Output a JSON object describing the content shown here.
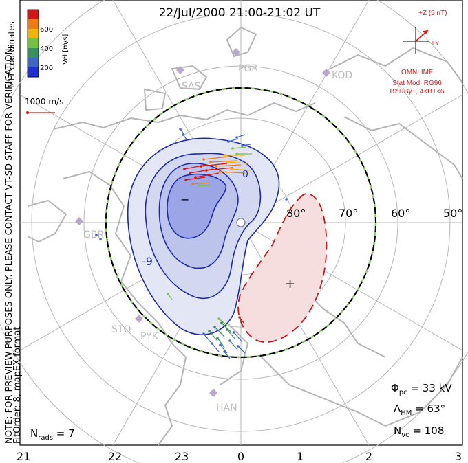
{
  "title": "22/Jul/2000 21:00-21:02 UT",
  "velocity_scale": {
    "label": "Vel [m/s]",
    "ticks": [
      "600",
      "400",
      "200"
    ],
    "colors": [
      "#d31515",
      "#f07a14",
      "#f2b40a",
      "#76c043",
      "#3a8f5f",
      "#3e67c9",
      "#1f2fd0"
    ]
  },
  "vector_scale_label": "1000 m/s",
  "coord_label": "MLT coordinates",
  "note_line_1": "NOTE: FOR PREVIEW PURPOSES ONLY. PLEASE CONTACT VT-SD STAFF FOR VERIFICATION.",
  "note_line_2": "FitOrder: 8, mapEX format",
  "imf": {
    "z_label": "+Z (5 nT)",
    "y_label": "+Y",
    "source": "OMNI IMF",
    "model": "Stat Mod: RG96",
    "condition": "Bz+/By+, 4<BT<6"
  },
  "latitude_labels": [
    "80°",
    "70°",
    "60°",
    "50°"
  ],
  "mlt_labels": [
    "21",
    "22",
    "23",
    "0",
    "1",
    "2",
    "3"
  ],
  "stations": [
    "PGR",
    "KOD",
    "SAS",
    "GBR",
    "STO",
    "PYK",
    "HAN"
  ],
  "contours": {
    "negative_label": "-9",
    "positive_label": "0",
    "min_symbol": "−",
    "max_symbol": "+"
  },
  "stats": {
    "phi_symbol": "Φ",
    "phi_sub": "pc",
    "phi_value": " = 33 kV",
    "lambda_symbol": "Λ",
    "lambda_sub": "HM",
    "lambda_value": " = 63°",
    "nvc_symbol": "N",
    "nvc_sub": "vc",
    "nvc_value": " = 108",
    "nrads_symbol": "N",
    "nrads_sub": "rads",
    "nrads_value": " = 7"
  }
}
